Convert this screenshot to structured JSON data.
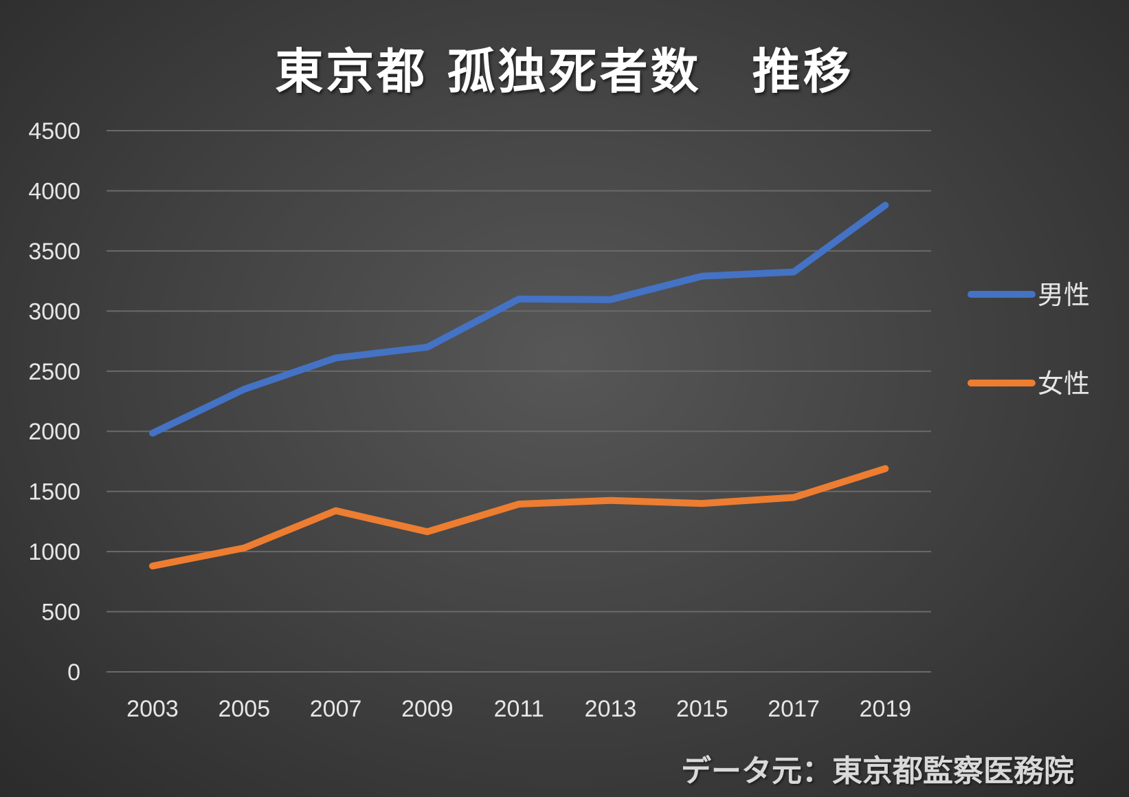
{
  "chart_data": {
    "type": "line",
    "title": "東京都 孤独死者数　推移",
    "x": [
      "2003",
      "2005",
      "2007",
      "2009",
      "2011",
      "2013",
      "2015",
      "2017",
      "2019"
    ],
    "ylim": [
      0,
      4500
    ],
    "yticks": [
      0,
      500,
      1000,
      1500,
      2000,
      2500,
      3000,
      3500,
      4000,
      4500
    ],
    "grid": true,
    "legend_position": "right",
    "series": [
      {
        "name": "男性",
        "color": "#4472c4",
        "values": [
          1985,
          2350,
          2610,
          2700,
          3100,
          3095,
          3290,
          3325,
          3880
        ]
      },
      {
        "name": "女性",
        "color": "#ed7d31",
        "values": [
          880,
          1030,
          1340,
          1165,
          1395,
          1425,
          1400,
          1450,
          1690
        ]
      }
    ]
  },
  "source_note": "データ元：東京都監察医務院"
}
